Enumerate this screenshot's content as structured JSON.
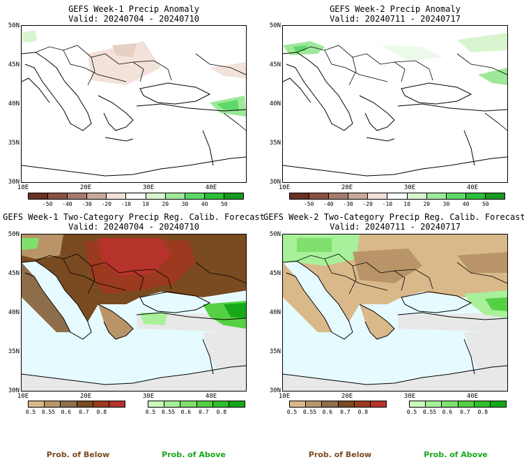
{
  "panels": [
    {
      "title": "GEFS Week-1 Precip Anomaly",
      "valid": "Valid: 20240704 - 20240710"
    },
    {
      "title": "GEFS Week-2 Precip Anomaly",
      "valid": "Valid: 20240711 - 20240717"
    },
    {
      "title": "GEFS Week-1 Two-Category Precip Reg. Calib. Forecast",
      "valid": "Valid: 20240704 - 20240710"
    },
    {
      "title": "GEFS Week-2 Two-Category Precip Reg. Calib. Forecast",
      "valid": "Valid: 20240711 - 20240717"
    }
  ],
  "axes": {
    "lat_labels": [
      "50N",
      "45N",
      "40N",
      "35N",
      "30N"
    ],
    "lon_labels": [
      "10E",
      "20E",
      "30E",
      "40E"
    ]
  },
  "anomaly_scale": {
    "labels": [
      "-50",
      "-40",
      "-30",
      "-20",
      "-10",
      "10",
      "20",
      "30",
      "40",
      "50"
    ],
    "colors": [
      "#6b2f23",
      "#8a5242",
      "#a67b6d",
      "#c9a79a",
      "#f2e2da",
      "#ffffff",
      "#d8f5d0",
      "#9ee89a",
      "#5fd86a",
      "#2bbf3a",
      "#169a20"
    ]
  },
  "below_scale": {
    "labels": [
      "0.5",
      "0.55",
      "0.6",
      "0.7",
      "0.8"
    ],
    "colors": [
      "#d9b88a",
      "#b89468",
      "#8e6e4a",
      "#7a4a20",
      "#9c3a1f",
      "#b5332a"
    ]
  },
  "above_scale": {
    "labels": [
      "0.5",
      "0.55",
      "0.6",
      "0.7",
      "0.8"
    ],
    "colors": [
      "#ccffbb",
      "#a8f09a",
      "#7fe06d",
      "#55d043",
      "#2fbf2a",
      "#16a818"
    ]
  },
  "legend": {
    "below": "Prob. of Below",
    "above": "Prob. of Above"
  }
}
